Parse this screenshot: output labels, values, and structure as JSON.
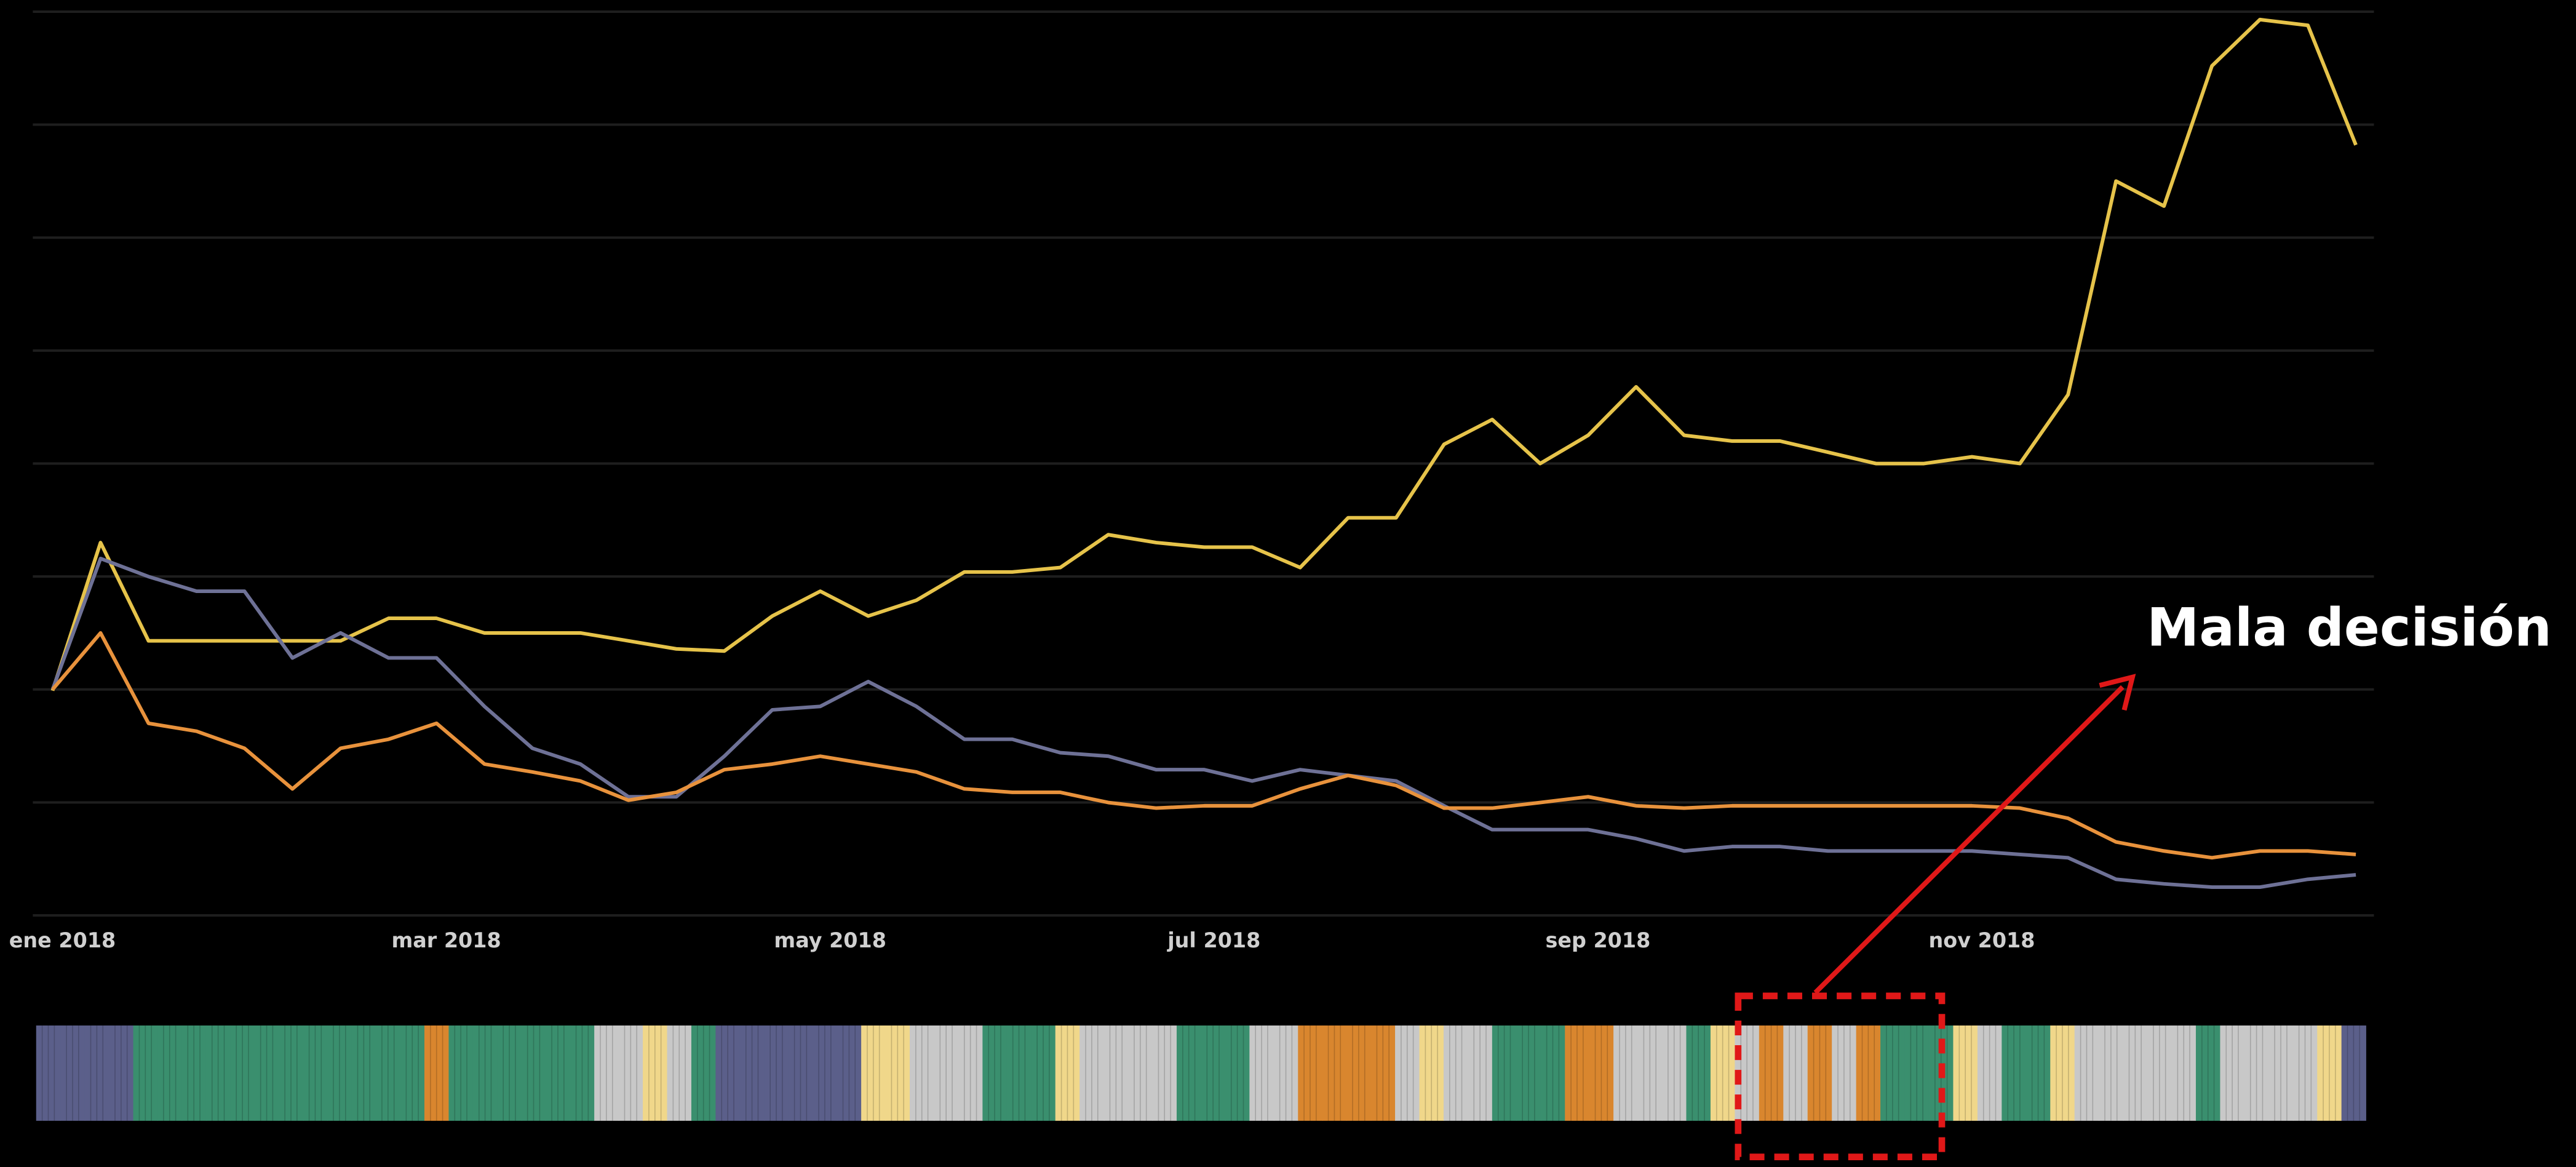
{
  "chart_data": {
    "type": "line",
    "categories": [
      "ene 2018",
      null,
      null,
      null,
      null,
      null,
      null,
      null,
      "mar 2018",
      null,
      null,
      null,
      null,
      null,
      null,
      null,
      "may 2018",
      null,
      null,
      null,
      null,
      null,
      null,
      null,
      "jul 2018",
      null,
      null,
      null,
      null,
      null,
      null,
      null,
      "sep 2018",
      null,
      null,
      null,
      null,
      null,
      null,
      null,
      "nov 2018",
      null,
      null,
      null,
      null,
      null,
      null,
      null,
      null
    ],
    "series": [
      {
        "color": "#e6c34a",
        "values": [
          1.99,
          3.3,
          2.43,
          2.43,
          2.43,
          2.43,
          2.43,
          2.63,
          2.63,
          2.5,
          2.5,
          2.5,
          2.43,
          2.36,
          2.34,
          2.65,
          2.87,
          2.65,
          2.79,
          3.04,
          3.04,
          3.08,
          3.37,
          3.3,
          3.26,
          3.26,
          3.08,
          3.52,
          3.52,
          4.17,
          4.39,
          4.0,
          4.25,
          4.68,
          4.25,
          4.2,
          4.2,
          4.1,
          4.0,
          4.0,
          4.06,
          4.0,
          4.61,
          6.5,
          6.28,
          7.52,
          7.93,
          7.88,
          6.82
        ]
      },
      {
        "color": "#6e7196",
        "values": [
          2.0,
          3.16,
          3.0,
          2.87,
          2.87,
          2.28,
          2.5,
          2.28,
          2.28,
          1.85,
          1.48,
          1.34,
          1.05,
          1.05,
          1.41,
          1.82,
          1.85,
          2.07,
          1.85,
          1.56,
          1.56,
          1.44,
          1.41,
          1.29,
          1.29,
          1.19,
          1.29,
          1.24,
          1.19,
          0.97,
          0.76,
          0.76,
          0.76,
          0.68,
          0.57,
          0.61,
          0.61,
          0.57,
          0.57,
          0.57,
          0.57,
          0.54,
          0.51,
          0.32,
          0.28,
          0.25,
          0.25,
          0.32,
          0.36
        ]
      },
      {
        "color": "#e8923c",
        "values": [
          2.0,
          2.5,
          1.7,
          1.63,
          1.48,
          1.12,
          1.48,
          1.56,
          1.7,
          1.34,
          1.27,
          1.19,
          1.02,
          1.09,
          1.29,
          1.34,
          1.41,
          1.34,
          1.27,
          1.12,
          1.09,
          1.09,
          1.0,
          0.95,
          0.97,
          0.97,
          1.12,
          1.24,
          1.15,
          0.95,
          0.95,
          1.0,
          1.05,
          0.97,
          0.95,
          0.97,
          0.97,
          0.97,
          0.97,
          0.97,
          0.97,
          0.95,
          0.86,
          0.65,
          0.57,
          0.51,
          0.57,
          0.57,
          0.54
        ]
      }
    ],
    "ylim": [
      0,
      8
    ],
    "yticks": [
      0,
      1,
      2,
      3,
      4,
      5,
      6,
      7,
      8
    ],
    "grid": true,
    "annotation": "Mala decisión",
    "regime_strip": [
      "#5b5f8a",
      "#5b5f8a",
      "#5b5f8a",
      "#5b5f8a",
      "#3a8f6e",
      "#3a8f6e",
      "#3a8f6e",
      "#3a8f6e",
      "#3a8f6e",
      "#3a8f6e",
      "#3a8f6e",
      "#3a8f6e",
      "#3a8f6e",
      "#3a8f6e",
      "#3a8f6e",
      "#3a8f6e",
      "#d9862e",
      "#3a8f6e",
      "#3a8f6e",
      "#3a8f6e",
      "#3a8f6e",
      "#3a8f6e",
      "#3a8f6e",
      "#c8c8c8",
      "#c8c8c8",
      "#f0d78a",
      "#c8c8c8",
      "#3a8f6e",
      "#5b5f8a",
      "#5b5f8a",
      "#5b5f8a",
      "#5b5f8a",
      "#5b5f8a",
      "#5b5f8a",
      "#f0d78a",
      "#f0d78a",
      "#c8c8c8",
      "#c8c8c8",
      "#c8c8c8",
      "#3a8f6e",
      "#3a8f6e",
      "#3a8f6e",
      "#f0d78a",
      "#c8c8c8",
      "#c8c8c8",
      "#c8c8c8",
      "#c8c8c8",
      "#3a8f6e",
      "#3a8f6e",
      "#3a8f6e",
      "#c8c8c8",
      "#c8c8c8",
      "#d9862e",
      "#d9862e",
      "#d9862e",
      "#d9862e",
      "#c8c8c8",
      "#f0d78a",
      "#c8c8c8",
      "#c8c8c8",
      "#3a8f6e",
      "#3a8f6e",
      "#3a8f6e",
      "#d9862e",
      "#d9862e",
      "#c8c8c8",
      "#c8c8c8",
      "#c8c8c8",
      "#3a8f6e",
      "#f0d78a",
      "#c8c8c8",
      "#d9862e",
      "#c8c8c8",
      "#d9862e",
      "#c8c8c8",
      "#d9862e",
      "#3a8f6e",
      "#3a8f6e",
      "#3a8f6e",
      "#f0d78a",
      "#c8c8c8",
      "#3a8f6e",
      "#3a8f6e",
      "#f0d78a",
      "#c8c8c8",
      "#c8c8c8",
      "#c8c8c8",
      "#c8c8c8",
      "#c8c8c8",
      "#3a8f6e",
      "#c8c8c8",
      "#c8c8c8",
      "#c8c8c8",
      "#c8c8c8",
      "#f0d78a",
      "#5b5f8a"
    ]
  }
}
